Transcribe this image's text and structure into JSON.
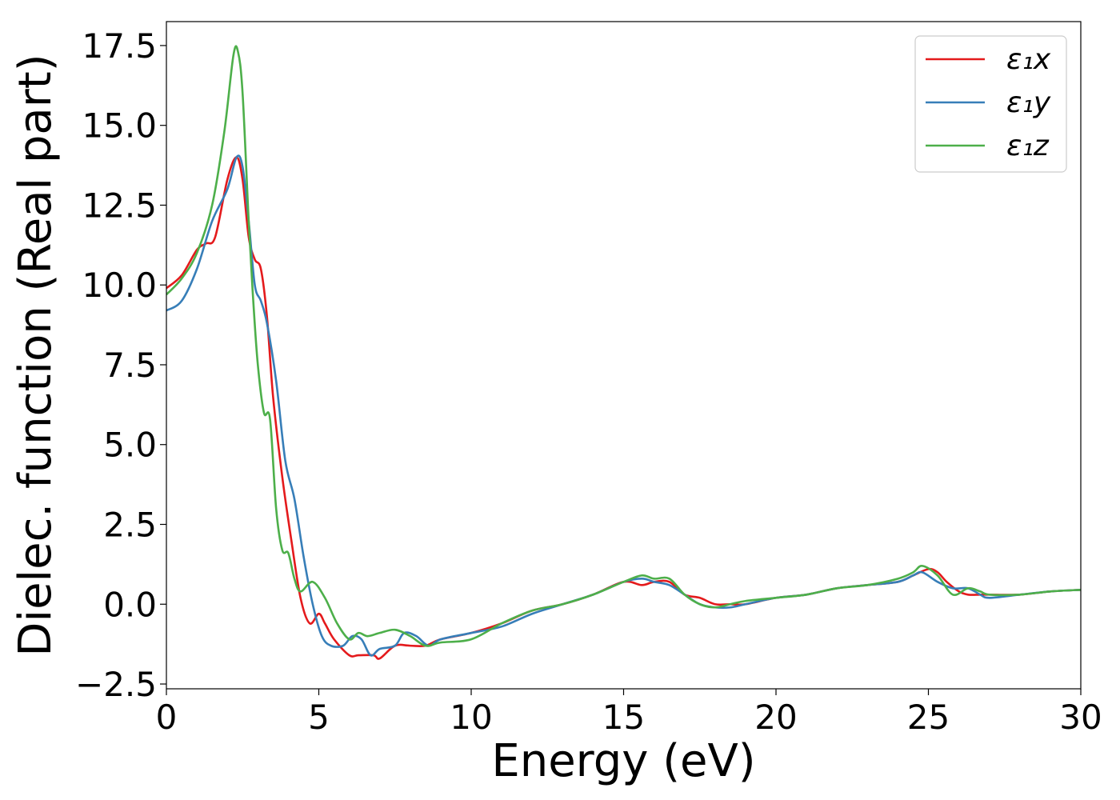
{
  "chart_data": {
    "type": "line",
    "xlabel": "Energy (eV)",
    "ylabel": "Dielec. function (Real part)",
    "xlim": [
      0,
      30
    ],
    "ylim": [
      -2.65,
      18.25
    ],
    "xticks": [
      "0",
      "5",
      "10",
      "15",
      "20",
      "25",
      "30"
    ],
    "yticks": [
      "−2.5",
      "0.0",
      "2.5",
      "5.0",
      "7.5",
      "10.0",
      "12.5",
      "15.0",
      "17.5"
    ],
    "grid": false,
    "legend_position": "top-right",
    "series": [
      {
        "name": "ε₁x",
        "color": "#e41a1c",
        "x": [
          0,
          0.5,
          1,
          1.3,
          1.6,
          2.0,
          2.3,
          2.5,
          2.7,
          2.9,
          3.1,
          3.3,
          3.5,
          3.8,
          4.1,
          4.4,
          4.7,
          5.0,
          5.2,
          5.5,
          6.0,
          6.3,
          6.8,
          7.0,
          7.5,
          8.0,
          8.5,
          9,
          10,
          11,
          12,
          13,
          14,
          15,
          15.6,
          16,
          16.5,
          17,
          17.5,
          18,
          18.5,
          19,
          20,
          21,
          22,
          23,
          24,
          24.5,
          25.0,
          25.3,
          25.6,
          26.0,
          26.3,
          26.7,
          27,
          28,
          29,
          30
        ],
        "y": [
          9.9,
          10.3,
          11.1,
          11.3,
          11.5,
          13.3,
          14.0,
          13.3,
          11.5,
          10.8,
          10.5,
          9.0,
          6.5,
          4.0,
          2.0,
          0.2,
          -0.6,
          -0.3,
          -0.6,
          -1.1,
          -1.6,
          -1.6,
          -1.6,
          -1.7,
          -1.3,
          -1.3,
          -1.3,
          -1.1,
          -0.9,
          -0.6,
          -0.2,
          0.0,
          0.3,
          0.7,
          0.6,
          0.7,
          0.7,
          0.3,
          0.2,
          0.0,
          0.0,
          0.0,
          0.2,
          0.3,
          0.5,
          0.6,
          0.7,
          0.9,
          1.1,
          1.0,
          0.7,
          0.4,
          0.3,
          0.3,
          0.3,
          0.3,
          0.4,
          0.45
        ]
      },
      {
        "name": "ε₁y",
        "color": "#377eb8",
        "x": [
          0,
          0.5,
          1,
          1.5,
          2.0,
          2.3,
          2.5,
          2.7,
          2.9,
          3.1,
          3.3,
          3.6,
          3.9,
          4.2,
          4.5,
          4.8,
          5.1,
          5.4,
          5.8,
          6.1,
          6.4,
          6.7,
          7.0,
          7.5,
          7.8,
          8.2,
          8.6,
          9,
          10,
          11,
          12,
          13,
          14,
          15,
          15.6,
          16,
          16.5,
          17,
          17.5,
          18,
          18.5,
          19,
          20,
          21,
          22,
          23,
          24,
          24.5,
          24.8,
          25.3,
          25.8,
          26.3,
          26.7,
          27,
          28,
          29,
          30
        ],
        "y": [
          9.2,
          9.5,
          10.5,
          12.0,
          13.0,
          14.0,
          13.7,
          12.0,
          10.0,
          9.5,
          8.8,
          7.0,
          4.5,
          3.3,
          1.5,
          0.0,
          -1.0,
          -1.3,
          -1.3,
          -1.0,
          -1.1,
          -1.6,
          -1.4,
          -1.3,
          -0.9,
          -1.0,
          -1.3,
          -1.1,
          -0.9,
          -0.7,
          -0.3,
          0.0,
          0.3,
          0.7,
          0.8,
          0.7,
          0.6,
          0.3,
          0.0,
          -0.1,
          -0.1,
          0.0,
          0.2,
          0.3,
          0.5,
          0.6,
          0.7,
          0.9,
          1.0,
          0.7,
          0.5,
          0.5,
          0.3,
          0.2,
          0.3,
          0.4,
          0.45
        ]
      },
      {
        "name": "ε₁z",
        "color": "#4daf4a",
        "x": [
          0,
          0.5,
          1,
          1.5,
          1.9,
          2.2,
          2.35,
          2.5,
          2.7,
          2.85,
          3.0,
          3.2,
          3.4,
          3.6,
          3.8,
          4.0,
          4.2,
          4.4,
          4.8,
          5.2,
          5.6,
          6.0,
          6.3,
          6.6,
          7.0,
          7.5,
          8.0,
          8.5,
          9,
          10,
          11,
          12,
          13,
          14,
          15,
          15.6,
          16,
          16.5,
          17,
          17.5,
          18,
          18.5,
          19,
          20,
          21,
          22,
          23,
          24,
          24.5,
          24.8,
          25.3,
          25.8,
          26.3,
          26.7,
          27,
          28,
          29,
          30
        ],
        "y": [
          9.7,
          10.2,
          11.0,
          12.5,
          14.8,
          17.2,
          17.3,
          16.0,
          12.0,
          9.5,
          7.5,
          6.0,
          5.8,
          3.0,
          1.7,
          1.6,
          0.8,
          0.4,
          0.7,
          0.2,
          -0.6,
          -1.1,
          -0.9,
          -1.0,
          -0.9,
          -0.8,
          -1.0,
          -1.3,
          -1.2,
          -1.1,
          -0.6,
          -0.2,
          0.0,
          0.3,
          0.7,
          0.9,
          0.8,
          0.8,
          0.3,
          0.0,
          -0.1,
          0.0,
          0.1,
          0.2,
          0.3,
          0.5,
          0.6,
          0.8,
          1.0,
          1.2,
          0.9,
          0.3,
          0.5,
          0.4,
          0.3,
          0.3,
          0.4,
          0.45
        ]
      }
    ]
  }
}
